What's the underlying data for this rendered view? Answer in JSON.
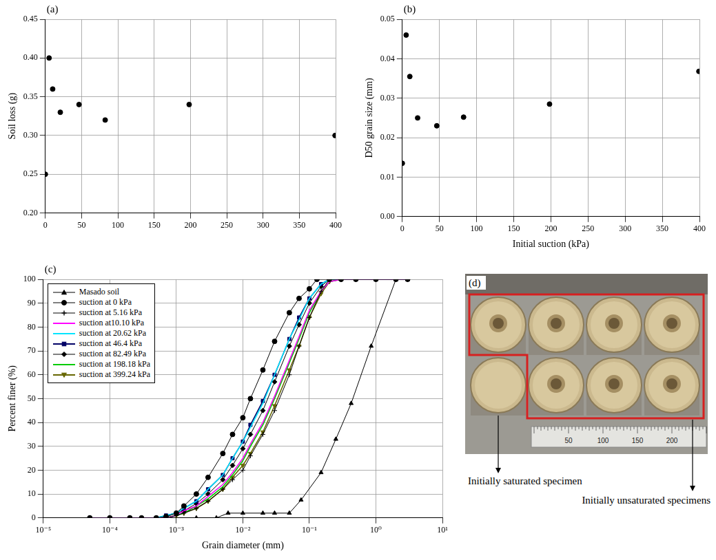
{
  "chart_data": [
    {
      "type": "scatter",
      "panel_label": "(a)",
      "y_label": "Soil loss (g)",
      "x": [
        0,
        5.16,
        10.1,
        20.62,
        46.4,
        82.49,
        198.18,
        399.24
      ],
      "values": [
        0.25,
        0.4,
        0.36,
        0.33,
        0.34,
        0.32,
        0.34,
        0.3
      ],
      "color": "#000000",
      "marker": "circle",
      "xlim": [
        0,
        400
      ],
      "xticks": [
        0,
        50,
        100,
        150,
        200,
        250,
        300,
        350,
        400
      ],
      "ylim": [
        0.2,
        0.45
      ],
      "yticks": [
        {
          "value": 0.2,
          "label": "0.20"
        },
        {
          "value": 0.25,
          "label": "0.25"
        },
        {
          "value": 0.3,
          "label": "0.30"
        },
        {
          "value": 0.35,
          "label": "0.35"
        },
        {
          "value": 0.4,
          "label": "0.40"
        },
        {
          "value": 0.45,
          "label": "0.45"
        }
      ],
      "grid": true
    },
    {
      "type": "scatter",
      "panel_label": "(b)",
      "x_label": "Initial suction (kPa)",
      "y_label": "D50 grain size (mm)",
      "x": [
        0,
        5.16,
        10.1,
        20.62,
        46.4,
        82.49,
        198.18,
        399.24
      ],
      "values": [
        0.0135,
        0.046,
        0.0355,
        0.025,
        0.023,
        0.0252,
        0.0285,
        0.0368
      ],
      "color": "#000000",
      "marker": "circle",
      "xlim": [
        0,
        400
      ],
      "xticks": [
        0,
        50,
        100,
        150,
        200,
        250,
        300,
        350,
        400
      ],
      "ylim": [
        0,
        0.05
      ],
      "yticks": [
        {
          "value": 0,
          "label": "0.00"
        },
        {
          "value": 0.01,
          "label": "0.01"
        },
        {
          "value": 0.02,
          "label": "0.02"
        },
        {
          "value": 0.03,
          "label": "0.03"
        },
        {
          "value": 0.04,
          "label": "0.04"
        },
        {
          "value": 0.05,
          "label": "0.05"
        }
      ],
      "grid": true
    },
    {
      "type": "line",
      "panel_label": "(c)",
      "x_label": "Grain diameter (mm)",
      "y_label": "Percent finer (%)",
      "log": "x",
      "grid": true,
      "legend": "upper left",
      "xlim": [
        1e-05,
        10
      ],
      "xticks": [
        {
          "value": 1e-05,
          "label": "10⁻⁵"
        },
        {
          "value": 0.0001,
          "label": "10⁻⁴"
        },
        {
          "value": 0.001,
          "label": "10⁻³"
        },
        {
          "value": 0.01,
          "label": "10⁻²"
        },
        {
          "value": 0.1,
          "label": "10⁻¹"
        },
        {
          "value": 1,
          "label": "10⁰"
        },
        {
          "value": 10,
          "label": "10¹"
        }
      ],
      "ylim": [
        0,
        100
      ],
      "yticks": [
        0,
        10,
        20,
        30,
        40,
        50,
        60,
        70,
        80,
        90,
        100
      ],
      "series": [
        {
          "name": "Masado soil",
          "color": "#000000",
          "marker": "triangle",
          "line_style": "solid",
          "x": [
            0.002,
            0.004,
            0.006,
            0.01,
            0.02,
            0.03,
            0.05,
            0.075,
            0.15,
            0.25,
            0.425,
            0.85,
            2.0
          ],
          "values": [
            0,
            0,
            2,
            2,
            2,
            2,
            2,
            7.5,
            19,
            33,
            48,
            72,
            100
          ]
        },
        {
          "name": "suction at 0 kPa",
          "color": "#000000",
          "marker": "circle",
          "line_style": "solid",
          "x": [
            5e-05,
            0.0001,
            0.0002,
            0.0003,
            0.0005,
            0.0007,
            0.001,
            0.0013,
            0.002,
            0.003,
            0.005,
            0.007,
            0.01,
            0.013,
            0.02,
            0.03,
            0.05,
            0.07,
            0.1,
            0.13,
            0.2,
            0.3,
            0.5,
            1,
            2,
            3
          ],
          "values": [
            0,
            0,
            0,
            0,
            0,
            0.5,
            2,
            5,
            10,
            17,
            27,
            35,
            42,
            50,
            62,
            74,
            86,
            92,
            96,
            100,
            100,
            100,
            100,
            100,
            100,
            100
          ]
        },
        {
          "name": "suction at 5.16 kPa",
          "color": "#000000",
          "marker": "plus",
          "line_style": "solid",
          "x": [
            5e-05,
            0.0001,
            0.0002,
            0.0005,
            0.0007,
            0.001,
            0.0013,
            0.002,
            0.003,
            0.005,
            0.007,
            0.01,
            0.013,
            0.02,
            0.03,
            0.05,
            0.07,
            0.1,
            0.15,
            0.2,
            0.3,
            0.5,
            1,
            2,
            3
          ],
          "values": [
            0,
            0,
            0,
            0,
            0,
            1,
            2,
            4,
            7,
            12,
            16,
            20,
            26,
            35,
            45,
            60,
            72,
            84,
            95,
            100,
            100,
            100,
            100,
            100,
            100
          ]
        },
        {
          "name": "suction at10.10 kPa",
          "color": "#ff00ff",
          "marker": "none",
          "line_style": "solid",
          "x": [
            5e-05,
            0.0001,
            0.0002,
            0.0005,
            0.0007,
            0.001,
            0.0013,
            0.002,
            0.003,
            0.005,
            0.007,
            0.01,
            0.013,
            0.02,
            0.03,
            0.05,
            0.07,
            0.1,
            0.15,
            0.2,
            0.3,
            0.5,
            1,
            2,
            3
          ],
          "values": [
            0,
            0,
            0,
            0,
            0,
            1,
            3,
            5,
            9,
            14,
            19,
            25,
            31,
            40,
            51,
            66,
            76,
            87,
            95,
            99,
            100,
            100,
            100,
            100,
            100
          ]
        },
        {
          "name": "suction at 20.62 kPa",
          "color": "#00e5ff",
          "marker": "none",
          "line_style": "solid",
          "x": [
            5e-05,
            0.0001,
            0.0002,
            0.0005,
            0.0007,
            0.001,
            0.0013,
            0.002,
            0.003,
            0.005,
            0.007,
            0.01,
            0.013,
            0.02,
            0.03,
            0.05,
            0.07,
            0.1,
            0.15,
            0.2,
            0.3,
            0.5,
            1,
            2,
            3
          ],
          "values": [
            0,
            0,
            0,
            0,
            1,
            2,
            4,
            7,
            12,
            18,
            25,
            32,
            38,
            48,
            60,
            75,
            83,
            92,
            98,
            100,
            100,
            100,
            100,
            100,
            100
          ]
        },
        {
          "name": "suction at 46.4 kPa",
          "color": "#000066",
          "marker": "square",
          "line_style": "solid",
          "x": [
            5e-05,
            0.0001,
            0.0002,
            0.0005,
            0.0007,
            0.001,
            0.0013,
            0.002,
            0.003,
            0.005,
            0.007,
            0.01,
            0.013,
            0.02,
            0.03,
            0.05,
            0.07,
            0.1,
            0.15,
            0.2,
            0.3,
            0.5,
            1,
            2,
            3
          ],
          "values": [
            0,
            0,
            0,
            0,
            1,
            2,
            4,
            7,
            12,
            18,
            25,
            32,
            39,
            49,
            60,
            75,
            84,
            92,
            98,
            100,
            100,
            100,
            100,
            100,
            100
          ]
        },
        {
          "name": "suction at 82.49 kPa",
          "color": "#000000",
          "marker": "diamond",
          "line_style": "solid",
          "x": [
            5e-05,
            0.0001,
            0.0002,
            0.0005,
            0.0007,
            0.001,
            0.0013,
            0.002,
            0.003,
            0.005,
            0.007,
            0.01,
            0.013,
            0.02,
            0.03,
            0.05,
            0.07,
            0.1,
            0.15,
            0.2,
            0.3,
            0.5,
            1,
            2,
            3
          ],
          "values": [
            0,
            0,
            0,
            0,
            0.5,
            2,
            3,
            6,
            10,
            16,
            22,
            29,
            35,
            45,
            57,
            72,
            81,
            90,
            97,
            100,
            100,
            100,
            100,
            100,
            100
          ]
        },
        {
          "name": "suction at 198.18 kPa",
          "color": "#00cc00",
          "marker": "none",
          "line_style": "solid",
          "x": [
            5e-05,
            0.0001,
            0.0002,
            0.0005,
            0.0007,
            0.001,
            0.0013,
            0.002,
            0.003,
            0.005,
            0.007,
            0.01,
            0.013,
            0.02,
            0.03,
            0.05,
            0.07,
            0.1,
            0.15,
            0.2,
            0.3,
            0.5,
            1,
            2,
            3
          ],
          "values": [
            0,
            0,
            0,
            0,
            0,
            1,
            2,
            5,
            8,
            13,
            18,
            24,
            30,
            39,
            50,
            65,
            75,
            86,
            95,
            99,
            100,
            100,
            100,
            100,
            100
          ]
        },
        {
          "name": "suction at 399.24 kPa",
          "color": "#666600",
          "marker": "triangle-down",
          "line_style": "solid",
          "x": [
            5e-05,
            0.0001,
            0.0002,
            0.0005,
            0.0007,
            0.001,
            0.0013,
            0.002,
            0.003,
            0.005,
            0.007,
            0.01,
            0.013,
            0.02,
            0.03,
            0.05,
            0.07,
            0.1,
            0.15,
            0.2,
            0.3,
            0.5,
            1,
            2,
            3
          ],
          "values": [
            0,
            0,
            0,
            0,
            0,
            1,
            2,
            4,
            7,
            12,
            17,
            22,
            27,
            36,
            47,
            62,
            72,
            84,
            94,
            99,
            100,
            100,
            100,
            100,
            100
          ]
        }
      ]
    }
  ],
  "photo": {
    "panel_label": "(d)",
    "ruler_labels": [
      "50",
      "100",
      "150",
      "200"
    ],
    "annotations": [
      "Initially saturated specimen",
      "Initially unsaturated specimens"
    ]
  }
}
